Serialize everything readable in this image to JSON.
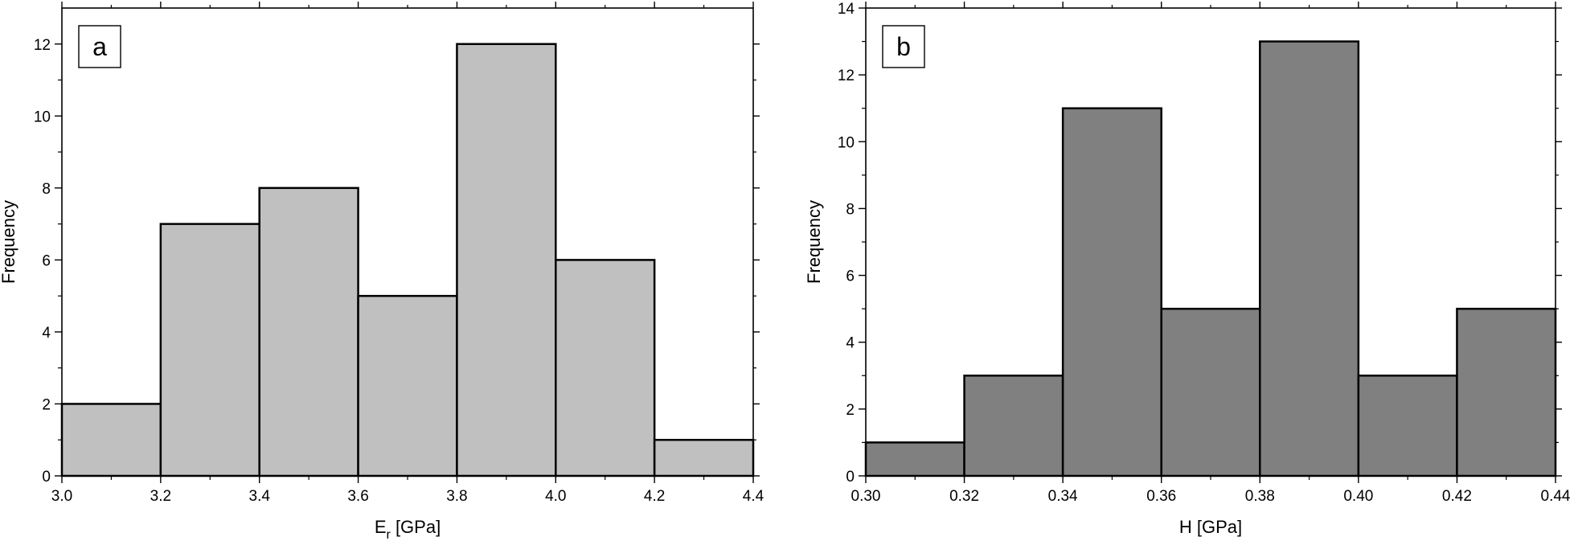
{
  "chart_data": [
    {
      "type": "bar",
      "panel_label": "a",
      "xlabel": "E",
      "xlabel_sub": "r",
      "xlabel_unit": " [GPa]",
      "ylabel": "Frequency",
      "bin_edges": [
        3.0,
        3.2,
        3.4,
        3.6,
        3.8,
        4.0,
        4.2,
        4.4
      ],
      "values": [
        2,
        7,
        8,
        5,
        12,
        6,
        1
      ],
      "xlim": [
        3.0,
        4.4
      ],
      "ylim": [
        0,
        13
      ],
      "xticks": [
        "3.0",
        "3.2",
        "3.4",
        "3.6",
        "3.8",
        "4.0",
        "4.2",
        "4.4"
      ],
      "yticks": [
        "0",
        "2",
        "4",
        "6",
        "8",
        "10",
        "12"
      ],
      "bar_color": "#c0c0c0",
      "grid": false
    },
    {
      "type": "bar",
      "panel_label": "b",
      "xlabel": "H",
      "xlabel_sub": "",
      "xlabel_unit": " [GPa]",
      "ylabel": "Frequency",
      "bin_edges": [
        0.3,
        0.32,
        0.34,
        0.36,
        0.38,
        0.4,
        0.42,
        0.44
      ],
      "values": [
        1,
        3,
        11,
        5,
        13,
        3,
        5
      ],
      "xlim": [
        0.3,
        0.44
      ],
      "ylim": [
        0,
        14
      ],
      "xticks": [
        "0.30",
        "0.32",
        "0.34",
        "0.36",
        "0.38",
        "0.40",
        "0.42",
        "0.44"
      ],
      "yticks": [
        "0",
        "2",
        "4",
        "6",
        "8",
        "10",
        "12",
        "14"
      ],
      "bar_color": "#808080",
      "grid": false
    }
  ]
}
